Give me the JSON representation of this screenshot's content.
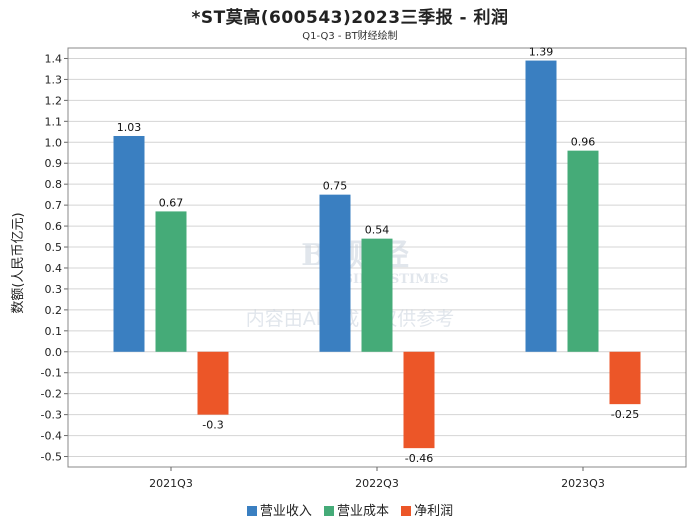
{
  "chart_data": {
    "type": "bar",
    "title": "*ST莫高(600543)2023三季报 - 利润",
    "subtitle": "Q1-Q3 - BT财经绘制",
    "ylabel": "数额(人民币亿元)",
    "xlabel": "",
    "ylim": [
      -0.55,
      1.45
    ],
    "yticks": [
      1.4,
      1.3,
      1.2,
      1.1,
      1.0,
      0.9,
      0.8,
      0.7,
      0.6,
      0.5,
      0.4,
      0.3,
      0.2,
      0.1,
      0.0,
      -0.1,
      -0.2,
      -0.3,
      -0.4,
      -0.5
    ],
    "ytick_labels": [
      "1.4",
      "1.3",
      "1.2",
      "1.1",
      "1.0",
      "0.9",
      "0.8",
      "0.7",
      "0.6",
      "0.5",
      "0.4",
      "0.3",
      "0.2",
      "0.1",
      "0.0",
      "-0.1",
      "-0.2",
      "-0.3",
      "-0.4",
      "-0.5"
    ],
    "categories": [
      "2021Q3",
      "2022Q3",
      "2023Q3"
    ],
    "series": [
      {
        "name": "营业收入",
        "color": "#3a7fc1",
        "values": [
          1.03,
          0.75,
          1.39
        ],
        "labels": [
          "1.03",
          "0.75",
          "1.39"
        ]
      },
      {
        "name": "营业成本",
        "color": "#45ab78",
        "values": [
          0.67,
          0.54,
          0.96
        ],
        "labels": [
          "0.67",
          "0.54",
          "0.96"
        ]
      },
      {
        "name": "净利润",
        "color": "#ec5628",
        "values": [
          -0.3,
          -0.46,
          -0.25
        ],
        "labels": [
          "-0.3",
          "-0.46",
          "-0.25"
        ]
      }
    ],
    "grid": true,
    "legend_position": "bottom-center"
  },
  "watermark": {
    "logo": "BT财经",
    "sub": "BUSINESSTIMES",
    "note": "内容由AI生成，仅供参考"
  }
}
